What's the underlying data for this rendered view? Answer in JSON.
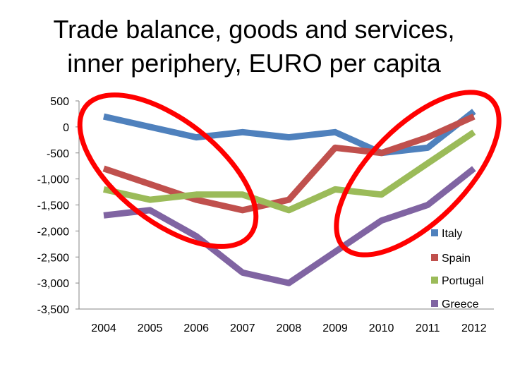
{
  "title": {
    "line1": "Trade balance, goods and services,",
    "line2": "inner periphery, EURO per capita"
  },
  "chart_data": {
    "type": "line",
    "categories": [
      "2004",
      "2005",
      "2006",
      "2007",
      "2008",
      "2009",
      "2010",
      "2011",
      "2012"
    ],
    "ylim": [
      -3500,
      500
    ],
    "yticks": [
      500,
      0,
      -500,
      -1000,
      -1500,
      -2000,
      -2500,
      -3000,
      -3500
    ],
    "ytick_labels": [
      "500",
      "0",
      "-500",
      "-1,000",
      "-1,500",
      "-2,000",
      "-2,500",
      "-3,000",
      "-3,500"
    ],
    "grid": false,
    "legend_position": "right",
    "series": [
      {
        "name": "Italy",
        "color": "#4F81BD",
        "values": [
          200,
          0,
          -200,
          -100,
          -200,
          -100,
          -500,
          -400,
          300
        ]
      },
      {
        "name": "Spain",
        "color": "#C0504D",
        "values": [
          -800,
          -1100,
          -1400,
          -1600,
          -1400,
          -400,
          -500,
          -200,
          200
        ]
      },
      {
        "name": "Portugal",
        "color": "#9BBB59",
        "values": [
          -1200,
          -1400,
          -1300,
          -1300,
          -1600,
          -1200,
          -1300,
          -700,
          -100
        ]
      },
      {
        "name": "Greece",
        "color": "#8064A2",
        "values": [
          -1700,
          -1600,
          -2100,
          -2800,
          -3000,
          -2400,
          -1800,
          -1500,
          -800
        ]
      }
    ],
    "annotations": [
      {
        "shape": "ellipse",
        "color": "#FF0000",
        "around": [
          "2004",
          "2007"
        ]
      },
      {
        "shape": "ellipse",
        "color": "#FF0000",
        "around": [
          "2009",
          "2012"
        ]
      }
    ]
  }
}
